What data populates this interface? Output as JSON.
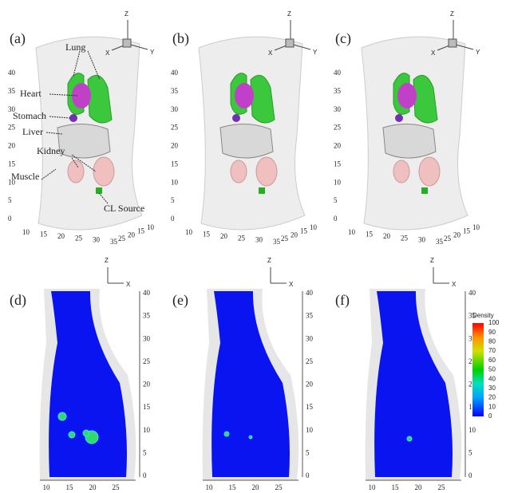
{
  "panels_top": [
    "(a)",
    "(b)",
    "(c)"
  ],
  "panels_bottom": [
    "(d)",
    "(e)",
    "(f)"
  ],
  "annotations": {
    "lung": "Lung",
    "heart": "Heart",
    "stomach": "Stomach",
    "liver": "Liver",
    "kidney": "Kidney",
    "muscle": "Muscle",
    "source": "CL Source"
  },
  "top_axes": {
    "z": "Z",
    "x": "X",
    "y": "Y",
    "vertical_ticks": [
      0,
      5,
      10,
      15,
      20,
      25,
      30,
      35,
      40
    ],
    "x_ticks": [
      10,
      15,
      20,
      25,
      30,
      35
    ],
    "depth_ticks": [
      25,
      20,
      15,
      10
    ]
  },
  "bottom_axes": {
    "z": "Z",
    "x": "X",
    "x_ticks": [
      10,
      15,
      20,
      25
    ],
    "vertical_ticks": [
      0,
      5,
      10,
      15,
      20,
      25,
      30,
      35,
      40
    ]
  },
  "colorbar": {
    "title": "Density",
    "ticks": [
      0,
      10,
      20,
      30,
      40,
      50,
      60,
      70,
      80,
      90,
      100
    ]
  }
}
